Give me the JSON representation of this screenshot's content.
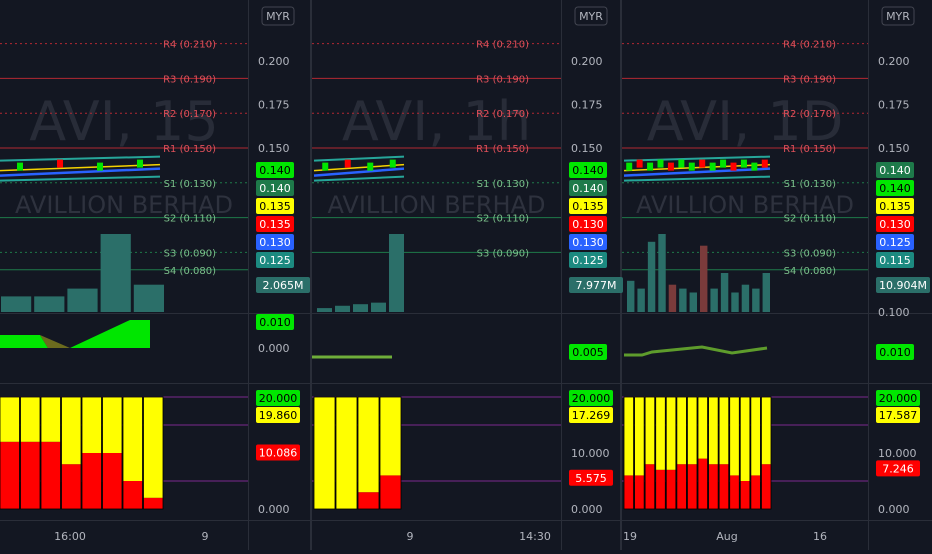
{
  "currency": "MYR",
  "watermark_symbol_prefix": "AVI, ",
  "watermark_name": "AVILLION BERHAD",
  "colors": {
    "bg": "#131722",
    "grid": "#1e222d",
    "axis_text": "#b2b5be",
    "pivot_red": "#b22833",
    "pivot_green": "#1e7a4a",
    "up": "#26a69a",
    "down": "#ef5350",
    "bright_green": "#00e600",
    "yellow": "#ffff00",
    "red": "#ff0000",
    "blue": "#2962ff",
    "teal": "#26a69a"
  },
  "chart_data": [
    {
      "panel": "15m",
      "type": "line",
      "watermark_interval": "15",
      "pivots": [
        {
          "label": "R4 (0.210)",
          "value": 0.21
        },
        {
          "label": "R3 (0.190)",
          "value": 0.19
        },
        {
          "label": "R2 (0.170)",
          "value": 0.17
        },
        {
          "label": "R1 (0.150)",
          "value": 0.15
        },
        {
          "label": "S1 (0.130)",
          "value": 0.13
        },
        {
          "label": "S2 (0.110)",
          "value": 0.11
        },
        {
          "label": "S3 (0.090)",
          "value": 0.09
        },
        {
          "label": "S4 (0.080)",
          "value": 0.08
        }
      ],
      "price_axis_ticks": [
        "0.200",
        "0.175",
        "0.150"
      ],
      "price_badges": [
        {
          "text": "0.140",
          "color": "#00e600",
          "text_color": "#000000"
        },
        {
          "text": "0.140",
          "color": "#1e7a4a",
          "text_color": "#ffffff"
        },
        {
          "text": "0.135",
          "color": "#ffff00",
          "text_color": "#000000"
        },
        {
          "text": "0.135",
          "color": "#ff0000",
          "text_color": "#ffffff"
        },
        {
          "text": "0.130",
          "color": "#2962ff",
          "text_color": "#ffffff"
        },
        {
          "text": "0.125",
          "color": "#1c8a80",
          "text_color": "#ffffff"
        }
      ],
      "volume": {
        "values": [
          0.2,
          0.2,
          0.3,
          1.0,
          0.35
        ],
        "badge": "2.065M"
      },
      "oscillator": {
        "ticks": [
          "0.000"
        ],
        "badge": "0.010"
      },
      "stacked": {
        "ticks": [
          "0.000"
        ],
        "badges": [
          {
            "text": "20.000",
            "color": "#00e600",
            "text_color": "#000000"
          },
          {
            "text": "19.860",
            "color": "#ffff00",
            "text_color": "#000000"
          },
          {
            "text": "10.086",
            "color": "#ff0000",
            "text_color": "#ffffff"
          }
        ],
        "bars": [
          [
            0,
            8,
            12
          ],
          [
            0,
            8,
            12
          ],
          [
            0,
            8,
            12
          ],
          [
            0,
            12,
            8
          ],
          [
            0,
            10,
            10
          ],
          [
            0,
            10,
            10
          ],
          [
            0,
            15,
            5
          ],
          [
            0,
            18,
            2
          ]
        ]
      },
      "time_labels": [
        "16:00",
        "9"
      ]
    },
    {
      "panel": "1h",
      "type": "line",
      "watermark_interval": "1h",
      "pivots": [
        {
          "label": "R4 (0.210)",
          "value": 0.21
        },
        {
          "label": "R3 (0.190)",
          "value": 0.19
        },
        {
          "label": "R2 (0.170)",
          "value": 0.17
        },
        {
          "label": "R1 (0.150)",
          "value": 0.15
        },
        {
          "label": "S1 (0.130)",
          "value": 0.13
        },
        {
          "label": "S2 (0.110)",
          "value": 0.11
        },
        {
          "label": "S3 (0.090)",
          "value": 0.09
        }
      ],
      "price_axis_ticks": [
        "0.200",
        "0.175",
        "0.150"
      ],
      "price_badges": [
        {
          "text": "0.140",
          "color": "#00e600",
          "text_color": "#000000"
        },
        {
          "text": "0.140",
          "color": "#1e7a4a",
          "text_color": "#ffffff"
        },
        {
          "text": "0.135",
          "color": "#ffff00",
          "text_color": "#000000"
        },
        {
          "text": "0.130",
          "color": "#ff0000",
          "text_color": "#ffffff"
        },
        {
          "text": "0.130",
          "color": "#2962ff",
          "text_color": "#ffffff"
        },
        {
          "text": "0.125",
          "color": "#1c8a80",
          "text_color": "#ffffff"
        }
      ],
      "volume": {
        "values": [
          0.05,
          0.08,
          0.1,
          0.12,
          1.0
        ],
        "badge": "7.977M"
      },
      "oscillator": {
        "ticks": [],
        "badge": "0.005"
      },
      "stacked": {
        "ticks": [
          "10.000",
          "0.000"
        ],
        "badges": [
          {
            "text": "20.000",
            "color": "#00e600",
            "text_color": "#000000"
          },
          {
            "text": "17.269",
            "color": "#ffff00",
            "text_color": "#000000"
          },
          {
            "text": "5.575",
            "color": "#ff0000",
            "text_color": "#ffffff"
          }
        ],
        "bars": [
          [
            0,
            20,
            0
          ],
          [
            0,
            20,
            0
          ],
          [
            0,
            17,
            3
          ],
          [
            0,
            14,
            6
          ]
        ]
      },
      "time_labels": [
        "9",
        "14:30"
      ]
    },
    {
      "panel": "1D",
      "type": "line",
      "watermark_interval": "1D",
      "pivots": [
        {
          "label": "R4 (0.210)",
          "value": 0.21
        },
        {
          "label": "R3 (0.190)",
          "value": 0.19
        },
        {
          "label": "R2 (0.170)",
          "value": 0.17
        },
        {
          "label": "R1 (0.150)",
          "value": 0.15
        },
        {
          "label": "S1 (0.130)",
          "value": 0.13
        },
        {
          "label": "S2 (0.110)",
          "value": 0.11
        },
        {
          "label": "S3 (0.090)",
          "value": 0.09
        },
        {
          "label": "S4 (0.080)",
          "value": 0.08
        }
      ],
      "price_axis_ticks": [
        "0.200",
        "0.175",
        "0.150"
      ],
      "price_badges": [
        {
          "text": "0.140",
          "color": "#1e7a4a",
          "text_color": "#ffffff"
        },
        {
          "text": "0.140",
          "color": "#00e600",
          "text_color": "#000000"
        },
        {
          "text": "0.135",
          "color": "#ffff00",
          "text_color": "#000000"
        },
        {
          "text": "0.130",
          "color": "#ff0000",
          "text_color": "#ffffff"
        },
        {
          "text": "0.125",
          "color": "#2962ff",
          "text_color": "#ffffff"
        },
        {
          "text": "0.115",
          "color": "#1c8a80",
          "text_color": "#ffffff"
        }
      ],
      "volume": {
        "values": [
          0.4,
          0.3,
          0.9,
          1.0,
          0.35,
          0.3,
          0.25,
          0.85,
          0.3,
          0.5,
          0.25,
          0.35,
          0.3,
          0.5
        ],
        "badge": "10.904M"
      },
      "oscillator": {
        "ticks": [
          "0.100"
        ],
        "badge": "0.010"
      },
      "stacked": {
        "ticks": [
          "10.000",
          "0.000"
        ],
        "badges": [
          {
            "text": "20.000",
            "color": "#00e600",
            "text_color": "#000000"
          },
          {
            "text": "17.587",
            "color": "#ffff00",
            "text_color": "#000000"
          },
          {
            "text": "7.246",
            "color": "#ff0000",
            "text_color": "#ffffff"
          }
        ],
        "bars": [
          [
            0,
            14,
            6
          ],
          [
            0,
            14,
            6
          ],
          [
            0,
            12,
            8
          ],
          [
            0,
            13,
            7
          ],
          [
            0,
            13,
            7
          ],
          [
            0,
            12,
            8
          ],
          [
            0,
            12,
            8
          ],
          [
            0,
            11,
            9
          ],
          [
            0,
            12,
            8
          ],
          [
            0,
            12,
            8
          ],
          [
            0,
            14,
            6
          ],
          [
            0,
            15,
            5
          ],
          [
            0,
            14,
            6
          ],
          [
            0,
            12,
            8
          ]
        ]
      },
      "time_labels": [
        "19",
        "Aug",
        "16"
      ]
    }
  ]
}
